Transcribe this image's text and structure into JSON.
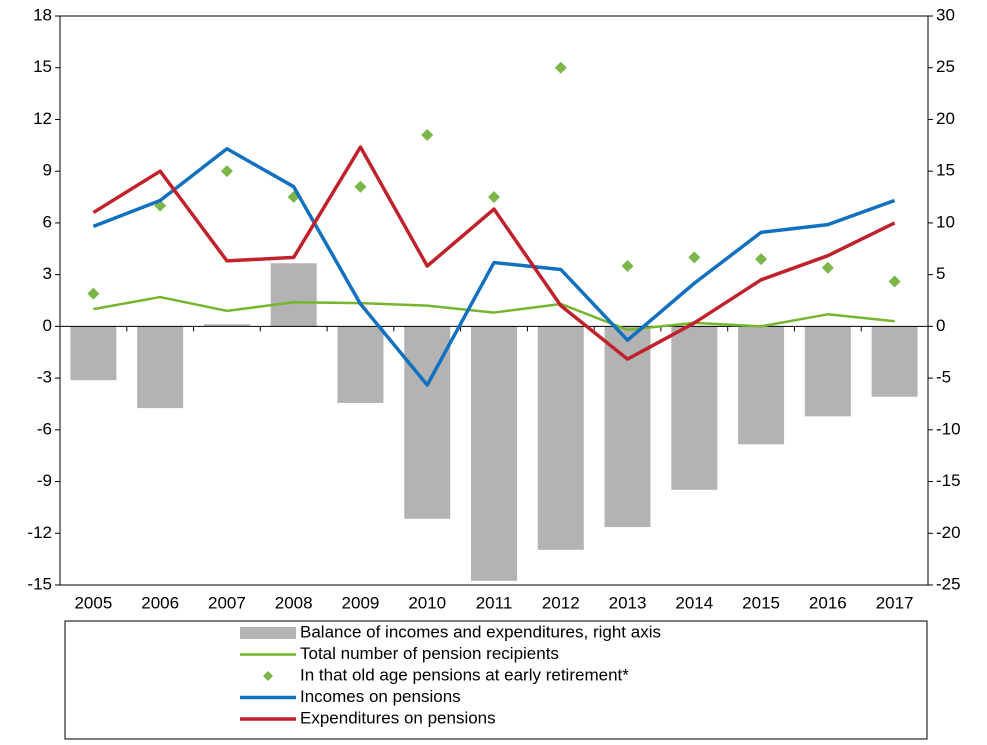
{
  "chart_data": {
    "type": "combo",
    "categories": [
      "2005",
      "2006",
      "2007",
      "2008",
      "2009",
      "2010",
      "2011",
      "2012",
      "2013",
      "2014",
      "2015",
      "2016",
      "2017"
    ],
    "ylim": [
      -15,
      18
    ],
    "yticks": [
      -15,
      -12,
      -9,
      -6,
      -3,
      0,
      3,
      6,
      9,
      12,
      15,
      18
    ],
    "y2lim": [
      -25,
      30
    ],
    "y2ticks": [
      -25,
      -20,
      -15,
      -10,
      -5,
      0,
      5,
      10,
      15,
      20,
      25,
      30
    ],
    "series": [
      {
        "name": "Balance of incomes and expenditures, right axis",
        "type": "bar",
        "axis": "y2",
        "color": "#b3b3b3",
        "values": [
          -5.2,
          -7.9,
          0.2,
          6.1,
          -7.4,
          -18.6,
          -24.6,
          -21.6,
          -19.4,
          -15.8,
          -11.4,
          -8.7,
          -6.8
        ]
      },
      {
        "name": "Total number of pension recipients",
        "type": "line",
        "color": "#77b52e",
        "values": [
          1.0,
          1.7,
          0.9,
          1.4,
          1.35,
          1.2,
          0.8,
          1.3,
          -0.2,
          0.2,
          0.0,
          0.7,
          0.3
        ]
      },
      {
        "name": "In that old age pensions at early retirement*",
        "type": "scatter",
        "color": "#7ab648",
        "values": [
          1.9,
          7.0,
          9.0,
          7.5,
          8.1,
          11.1,
          7.5,
          15.0,
          3.5,
          4.0,
          3.9,
          3.4,
          2.6
        ]
      },
      {
        "name": "Incomes on pensions",
        "type": "line",
        "color": "#1170bf",
        "values": [
          5.8,
          7.3,
          10.3,
          8.1,
          1.3,
          -3.4,
          3.7,
          3.3,
          -0.8,
          2.5,
          5.45,
          5.9,
          7.3
        ]
      },
      {
        "name": "Expenditures on pensions",
        "type": "line",
        "color": "#c0222c",
        "values": [
          6.6,
          9.0,
          3.8,
          4.0,
          10.4,
          3.5,
          6.8,
          1.2,
          -1.9,
          0.2,
          2.7,
          4.1,
          6.0
        ]
      }
    ]
  }
}
